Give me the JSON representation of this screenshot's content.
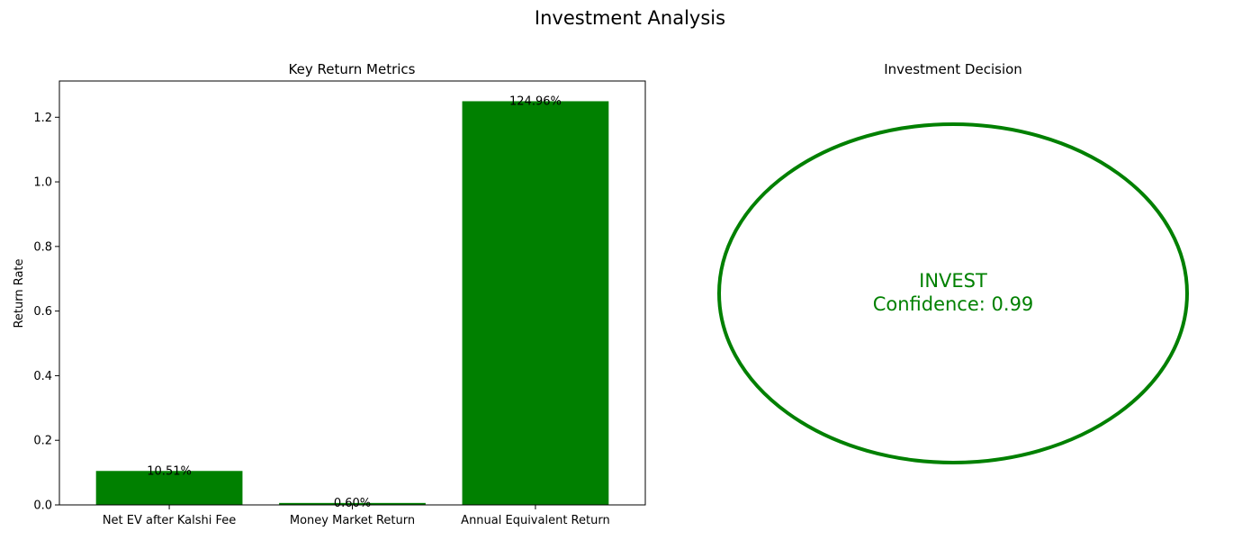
{
  "figure": {
    "title": "Investment Analysis"
  },
  "chart_data": [
    {
      "type": "bar",
      "title": "Key Return Metrics",
      "xlabel": "",
      "ylabel": "Return Rate",
      "categories": [
        "Net EV after Kalshi Fee",
        "Money Market Return",
        "Annual Equivalent Return"
      ],
      "values": [
        0.1051,
        0.006,
        1.2496
      ],
      "data_labels": [
        "10.51%",
        "0.60%",
        "124.96%"
      ],
      "ylim": [
        0,
        1.3122
      ],
      "yticks": [
        0.0,
        0.2,
        0.4,
        0.6,
        0.8,
        1.0,
        1.2
      ],
      "ytick_labels": [
        "0.0",
        "0.2",
        "0.4",
        "0.6",
        "0.8",
        "1.0",
        "1.2"
      ],
      "bar_color": "#008000",
      "grid": false
    },
    {
      "type": "other",
      "title": "Investment Decision",
      "decision": "INVEST",
      "confidence_label": "Confidence: 0.99",
      "color": "#008000"
    }
  ]
}
